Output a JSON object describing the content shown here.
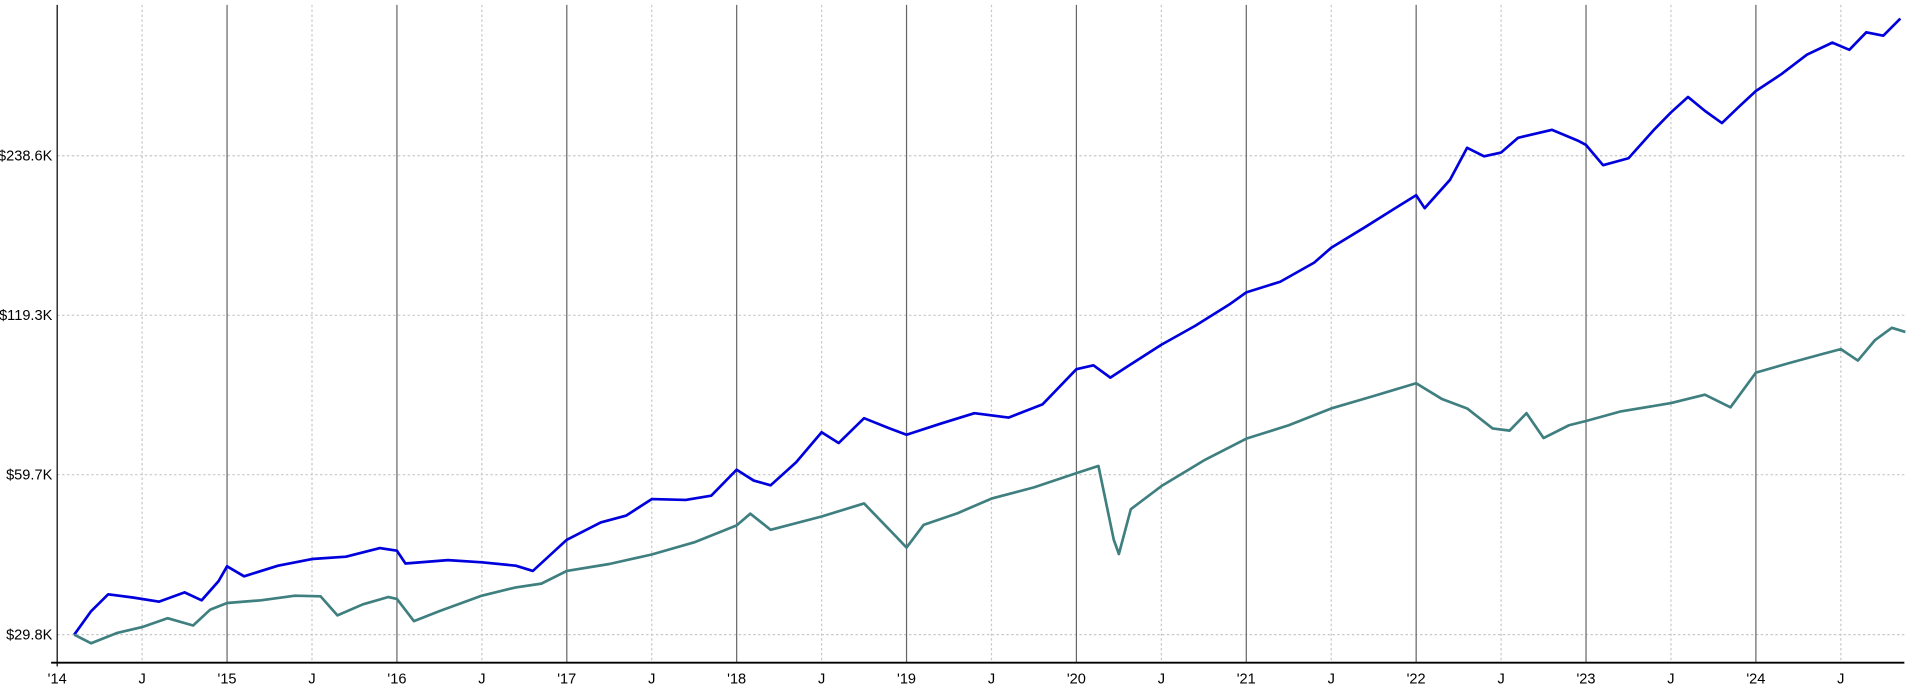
{
  "chart_data": {
    "type": "line",
    "title": "",
    "xlabel": "",
    "ylabel": "",
    "y_scale": "log",
    "grid": true,
    "x_ticks": [
      {
        "label": "'14",
        "t": 2014.0,
        "major": true
      },
      {
        "label": "J",
        "t": 2014.5,
        "major": false
      },
      {
        "label": "'15",
        "t": 2015.0,
        "major": true
      },
      {
        "label": "J",
        "t": 2015.5,
        "major": false
      },
      {
        "label": "'16",
        "t": 2016.0,
        "major": true
      },
      {
        "label": "J",
        "t": 2016.5,
        "major": false
      },
      {
        "label": "'17",
        "t": 2017.0,
        "major": true
      },
      {
        "label": "J",
        "t": 2017.5,
        "major": false
      },
      {
        "label": "'18",
        "t": 2018.0,
        "major": true
      },
      {
        "label": "J",
        "t": 2018.5,
        "major": false
      },
      {
        "label": "'19",
        "t": 2019.0,
        "major": true
      },
      {
        "label": "J",
        "t": 2019.5,
        "major": false
      },
      {
        "label": "'20",
        "t": 2020.0,
        "major": true
      },
      {
        "label": "J",
        "t": 2020.5,
        "major": false
      },
      {
        "label": "'21",
        "t": 2021.0,
        "major": true
      },
      {
        "label": "J",
        "t": 2021.5,
        "major": false
      },
      {
        "label": "'22",
        "t": 2022.0,
        "major": true
      },
      {
        "label": "J",
        "t": 2022.5,
        "major": false
      },
      {
        "label": "'23",
        "t": 2023.0,
        "major": true
      },
      {
        "label": "J",
        "t": 2023.5,
        "major": false
      },
      {
        "label": "'24",
        "t": 2024.0,
        "major": true
      },
      {
        "label": "J",
        "t": 2024.5,
        "major": false
      }
    ],
    "y_ticks": [
      {
        "label": "$29.8K",
        "value": 29.8
      },
      {
        "label": "$59.7K",
        "value": 59.7
      },
      {
        "label": "$119.3K",
        "value": 119.3
      },
      {
        "label": "$238.6K",
        "value": 238.6
      }
    ],
    "x_range": [
      2014.0,
      2024.88
    ],
    "y_range_thousands": [
      26.5,
      470
    ],
    "series": [
      {
        "color": "#0000dd",
        "points": [
          [
            2014.1,
            29.8
          ],
          [
            2014.2,
            33
          ],
          [
            2014.3,
            35.5
          ],
          [
            2014.45,
            35
          ],
          [
            2014.6,
            34.4
          ],
          [
            2014.75,
            35.8
          ],
          [
            2014.85,
            34.6
          ],
          [
            2014.95,
            37.6
          ],
          [
            2015.0,
            40.1
          ],
          [
            2015.1,
            38.4
          ],
          [
            2015.3,
            40.2
          ],
          [
            2015.5,
            41.4
          ],
          [
            2015.7,
            41.8
          ],
          [
            2015.9,
            43.4
          ],
          [
            2016.0,
            42.9
          ],
          [
            2016.05,
            40.6
          ],
          [
            2016.3,
            41.2
          ],
          [
            2016.5,
            40.8
          ],
          [
            2016.7,
            40.2
          ],
          [
            2016.8,
            39.3
          ],
          [
            2016.95,
            43.5
          ],
          [
            2017.0,
            45
          ],
          [
            2017.2,
            48.5
          ],
          [
            2017.35,
            50
          ],
          [
            2017.5,
            53.7
          ],
          [
            2017.7,
            53.5
          ],
          [
            2017.85,
            54.5
          ],
          [
            2018.0,
            61
          ],
          [
            2018.1,
            58.2
          ],
          [
            2018.2,
            57
          ],
          [
            2018.35,
            63
          ],
          [
            2018.5,
            71.8
          ],
          [
            2018.6,
            68.5
          ],
          [
            2018.75,
            76.3
          ],
          [
            2018.9,
            73
          ],
          [
            2019.0,
            71
          ],
          [
            2019.2,
            74.5
          ],
          [
            2019.4,
            78
          ],
          [
            2019.6,
            76.5
          ],
          [
            2019.8,
            81
          ],
          [
            2020.0,
            94.4
          ],
          [
            2020.1,
            96
          ],
          [
            2020.2,
            91
          ],
          [
            2020.3,
            95.5
          ],
          [
            2020.5,
            105
          ],
          [
            2020.7,
            114
          ],
          [
            2020.9,
            125
          ],
          [
            2021.0,
            131.8
          ],
          [
            2021.2,
            138
          ],
          [
            2021.4,
            150
          ],
          [
            2021.5,
            160
          ],
          [
            2021.7,
            175
          ],
          [
            2021.9,
            192
          ],
          [
            2022.0,
            201
          ],
          [
            2022.05,
            190
          ],
          [
            2022.2,
            215
          ],
          [
            2022.3,
            247
          ],
          [
            2022.4,
            238
          ],
          [
            2022.5,
            242
          ],
          [
            2022.6,
            258
          ],
          [
            2022.8,
            267
          ],
          [
            2022.95,
            255
          ],
          [
            2023.0,
            250
          ],
          [
            2023.1,
            229
          ],
          [
            2023.25,
            236
          ],
          [
            2023.4,
            267
          ],
          [
            2023.5,
            288
          ],
          [
            2023.6,
            308
          ],
          [
            2023.7,
            290
          ],
          [
            2023.8,
            275
          ],
          [
            2023.9,
            295
          ],
          [
            2024.0,
            316
          ],
          [
            2024.15,
            340
          ],
          [
            2024.3,
            370
          ],
          [
            2024.45,
            390
          ],
          [
            2024.55,
            378
          ],
          [
            2024.65,
            408
          ],
          [
            2024.75,
            402
          ],
          [
            2024.85,
            433
          ]
        ]
      },
      {
        "color": "#3f7f7f",
        "points": [
          [
            2014.1,
            29.8
          ],
          [
            2014.2,
            28.7
          ],
          [
            2014.35,
            30
          ],
          [
            2014.5,
            30.8
          ],
          [
            2014.65,
            32
          ],
          [
            2014.8,
            31
          ],
          [
            2014.9,
            33.2
          ],
          [
            2015.0,
            34.2
          ],
          [
            2015.2,
            34.6
          ],
          [
            2015.4,
            35.3
          ],
          [
            2015.55,
            35.2
          ],
          [
            2015.65,
            32.4
          ],
          [
            2015.8,
            34
          ],
          [
            2015.95,
            35.1
          ],
          [
            2016.0,
            34.8
          ],
          [
            2016.1,
            31.6
          ],
          [
            2016.25,
            33
          ],
          [
            2016.5,
            35.3
          ],
          [
            2016.7,
            36.6
          ],
          [
            2016.85,
            37.2
          ],
          [
            2017.0,
            39.3
          ],
          [
            2017.25,
            40.5
          ],
          [
            2017.5,
            42.2
          ],
          [
            2017.75,
            44.5
          ],
          [
            2018.0,
            47.9
          ],
          [
            2018.08,
            50.4
          ],
          [
            2018.2,
            47
          ],
          [
            2018.5,
            49.8
          ],
          [
            2018.75,
            52.7
          ],
          [
            2018.9,
            47
          ],
          [
            2019.0,
            43.5
          ],
          [
            2019.1,
            48
          ],
          [
            2019.3,
            50.5
          ],
          [
            2019.5,
            53.8
          ],
          [
            2019.75,
            56.5
          ],
          [
            2020.0,
            60.1
          ],
          [
            2020.13,
            62
          ],
          [
            2020.22,
            45
          ],
          [
            2020.25,
            42.3
          ],
          [
            2020.32,
            51.4
          ],
          [
            2020.5,
            56.8
          ],
          [
            2020.75,
            63.5
          ],
          [
            2021.0,
            69.8
          ],
          [
            2021.25,
            74
          ],
          [
            2021.5,
            79.6
          ],
          [
            2021.75,
            84
          ],
          [
            2022.0,
            88.8
          ],
          [
            2022.15,
            83
          ],
          [
            2022.3,
            79.6
          ],
          [
            2022.45,
            73
          ],
          [
            2022.55,
            72.3
          ],
          [
            2022.65,
            78
          ],
          [
            2022.75,
            70
          ],
          [
            2022.9,
            74
          ],
          [
            2023.0,
            75.4
          ],
          [
            2023.2,
            78.5
          ],
          [
            2023.5,
            81.5
          ],
          [
            2023.7,
            84.5
          ],
          [
            2023.85,
            80
          ],
          [
            2024.0,
            93
          ],
          [
            2024.2,
            97
          ],
          [
            2024.4,
            101
          ],
          [
            2024.5,
            103
          ],
          [
            2024.6,
            98
          ],
          [
            2024.7,
            107
          ],
          [
            2024.8,
            113
          ],
          [
            2024.88,
            111
          ]
        ]
      }
    ]
  }
}
